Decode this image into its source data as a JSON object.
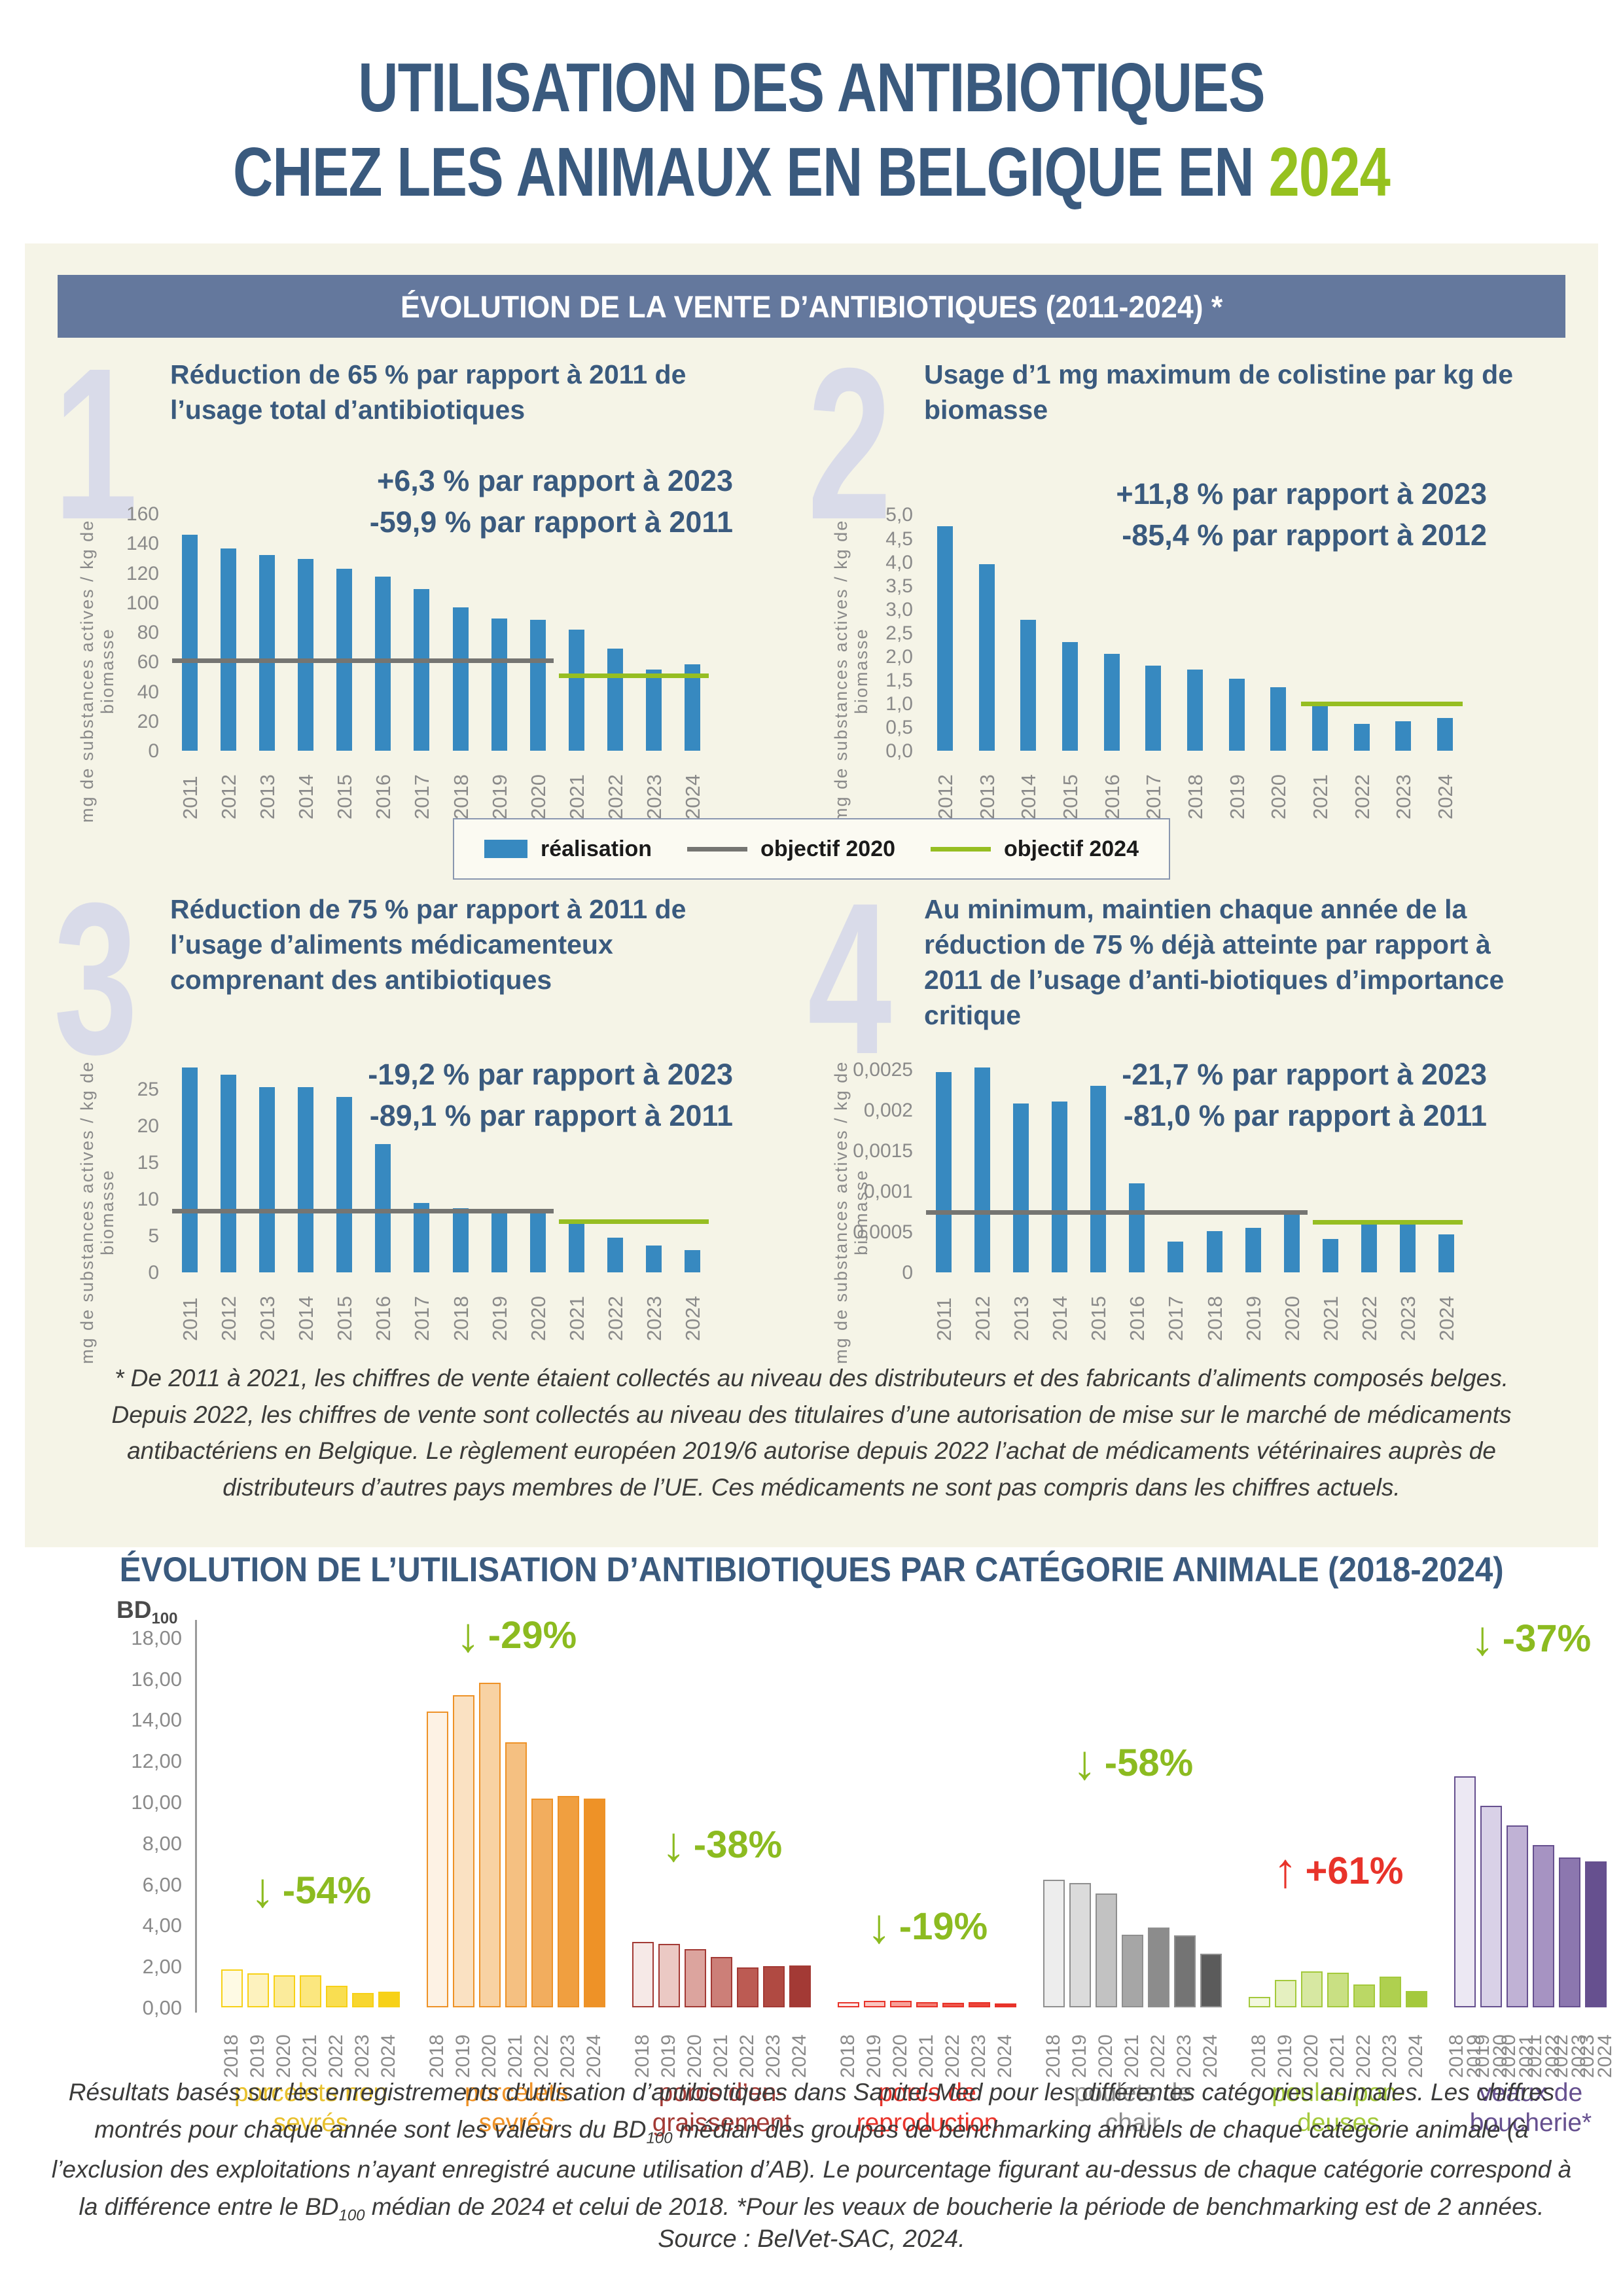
{
  "page_title": {
    "line1": "UTILISATION DES ANTIBIOTIQUES",
    "line2_prefix": "CHEZ LES ANIMAUX EN BELGIQUE EN ",
    "line2_year": "2024"
  },
  "colors": {
    "navy": "#3A5A7E",
    "lime": "#96C11F",
    "bar_blue": "#3789C0",
    "objective_grey": "#757572",
    "objective_green": "#96BE22",
    "header_band": "#64789D",
    "panel_cream": "#F5F4E7"
  },
  "section_sales": {
    "header": "ÉVOLUTION DE LA VENTE D’ANTIBIOTIQUES (2011-2024) *",
    "legend": [
      {
        "name": "réalisation"
      },
      {
        "name": "objectif 2020"
      },
      {
        "name": "objectif 2024"
      }
    ],
    "footnote": "* De 2011 à 2021, les chiffres de vente étaient collectés au niveau des distributeurs et des fabricants d’aliments composés belges. Depuis 2022, les chiffres de vente sont collectés au niveau des titulaires d’une autorisation de mise sur le marché de médicaments antibactériens en Belgique. Le règlement européen 2019/6 autorise depuis 2022 l’achat de médicaments vétérinaires auprès de distributeurs d’autres pays membres de l’UE. Ces médicaments ne sont pas compris dans les chiffres actuels."
  },
  "section_categories": {
    "heading": "ÉVOLUTION DE L’UTILISATION D’ANTIBIOTIQUES PAR CATÉGORIE ANIMALE (2018-2024)",
    "footer_note_html": "Résultats basés sur les enregistrements d’utilisation d’antibiotiques dans Sanitel-Med pour les différentes catégories animales. Les chiffres montrés pour chaque année sont les valeurs du BD<sub>100</sub> médian des groupes de benchmarking annuels de chaque catégorie animale (à l’exclusion des exploitations n’ayant enregistré aucune utilisation d’AB). Le pourcentage figurant au-dessus de chaque catégorie correspond à la différence entre le BD<sub>100</sub> médian de 2024 et celui de 2018. *Pour les veaux de boucherie la période de benchmarking est de 2 années.",
    "source": "Source : BelVet-SAC, 2024."
  },
  "chart_data": [
    {
      "id": "usage-total-antibiotiques",
      "type": "bar",
      "number": "1",
      "title": "Réduction de 65 % par rapport à 2011 de l’usage total d’antibiotiques",
      "annotation_lines": [
        "+6,3 % par rapport à 2023",
        "-59,9 % par rapport à 2011"
      ],
      "ylabel": "mg de substances actives / kg de biomasse",
      "categories": [
        "2011",
        "2012",
        "2013",
        "2014",
        "2015",
        "2016",
        "2017",
        "2018",
        "2019",
        "2020",
        "2021",
        "2022",
        "2023",
        "2024"
      ],
      "values": [
        146,
        136.5,
        132,
        129.5,
        123,
        117.5,
        109,
        97,
        89.5,
        88.5,
        82,
        69,
        55,
        58.5
      ],
      "ylim": [
        0,
        168
      ],
      "yticks": [
        {
          "v": 0,
          "label": "0"
        },
        {
          "v": 20,
          "label": "20"
        },
        {
          "v": 40,
          "label": "40"
        },
        {
          "v": 60,
          "label": "60"
        },
        {
          "v": 80,
          "label": "80"
        },
        {
          "v": 100,
          "label": "100"
        },
        {
          "v": 120,
          "label": "120"
        },
        {
          "v": 140,
          "label": "140"
        },
        {
          "v": 160,
          "label": "160"
        }
      ],
      "bar_color": "#3789C0",
      "target_lines": [
        {
          "name": "objectif 2020",
          "value": 61,
          "start": "2011",
          "end": "2020",
          "color": "#757572"
        },
        {
          "name": "objectif 2024",
          "value": 51,
          "start": "2021",
          "end": "2024",
          "color": "#96BE22"
        }
      ]
    },
    {
      "id": "usage-colistine",
      "type": "bar",
      "number": "2",
      "title": "Usage d’1 mg maximum de colistine par kg de biomasse",
      "annotation_lines": [
        "+11,8 % par rapport à 2023",
        "-85,4 % par rapport à 2012"
      ],
      "ylabel": "mg de substances actives / kg de biomasse",
      "categories": [
        "2012",
        "2013",
        "2014",
        "2015",
        "2016",
        "2017",
        "2018",
        "2019",
        "2020",
        "2021",
        "2022",
        "2023",
        "2024"
      ],
      "values": [
        4.75,
        3.95,
        2.78,
        2.3,
        2.05,
        1.8,
        1.72,
        1.52,
        1.35,
        1.0,
        0.57,
        0.62,
        0.69
      ],
      "ylim": [
        0,
        5.27
      ],
      "yticks": [
        {
          "v": 0,
          "label": "0,0"
        },
        {
          "v": 0.5,
          "label": "0,5"
        },
        {
          "v": 1,
          "label": "1,0"
        },
        {
          "v": 1.5,
          "label": "1,5"
        },
        {
          "v": 2,
          "label": "2,0"
        },
        {
          "v": 2.5,
          "label": "2,5"
        },
        {
          "v": 3,
          "label": "3,0"
        },
        {
          "v": 3.5,
          "label": "3,5"
        },
        {
          "v": 4,
          "label": "4,0"
        },
        {
          "v": 4.5,
          "label": "4,5"
        },
        {
          "v": 5,
          "label": "5,0"
        }
      ],
      "bar_color": "#3789C0",
      "target_lines": [
        {
          "name": "objectif 2024",
          "value": 1.0,
          "start": "2021",
          "end": "2024",
          "color": "#96BE22"
        }
      ]
    },
    {
      "id": "aliments-medicamenteux",
      "type": "bar",
      "number": "3",
      "title": "Réduction de 75 % par rapport à 2011 de l’usage d’aliments médicamenteux comprenant des antibiotiques",
      "annotation_lines": [
        "-19,2 % par rapport à 2023",
        "-89,1 % par rapport à 2011"
      ],
      "ylabel": "mg de substances actives / kg de biomasse",
      "categories": [
        "2011",
        "2012",
        "2013",
        "2014",
        "2015",
        "2016",
        "2017",
        "2018",
        "2019",
        "2020",
        "2021",
        "2022",
        "2023",
        "2024"
      ],
      "values": [
        28,
        27,
        25.3,
        25.3,
        24,
        17.5,
        9.5,
        8.8,
        8.45,
        8.3,
        7.0,
        4.7,
        3.7,
        3.0
      ],
      "ylim": [
        0,
        29.5
      ],
      "yticks": [
        {
          "v": 0,
          "label": "0"
        },
        {
          "v": 5,
          "label": "5"
        },
        {
          "v": 10,
          "label": "10"
        },
        {
          "v": 15,
          "label": "15"
        },
        {
          "v": 20,
          "label": "20"
        },
        {
          "v": 25,
          "label": "25"
        }
      ],
      "bar_color": "#3789C0",
      "target_lines": [
        {
          "name": "objectif 2020",
          "value": 8.4,
          "start": "2011",
          "end": "2020",
          "color": "#757572"
        },
        {
          "name": "objectif 2024",
          "value": 7.0,
          "start": "2021",
          "end": "2024",
          "color": "#96BE22"
        }
      ]
    },
    {
      "id": "antibiotiques-importance-critique",
      "type": "bar",
      "number": "4",
      "title": "Au minimum, maintien chaque année de la réduction de 75 % déjà atteinte par rapport à 2011 de l’usage d’anti-biotiques d’importance critique",
      "annotation_lines": [
        "-21,7 % par rapport à 2023",
        "-81,0 % par rapport à 2011"
      ],
      "ylabel": "mg de substances actives / kg de biomasse",
      "categories": [
        "2011",
        "2012",
        "2013",
        "2014",
        "2015",
        "2016",
        "2017",
        "2018",
        "2019",
        "2020",
        "2021",
        "2022",
        "2023",
        "2024"
      ],
      "values": [
        0.00247,
        0.00252,
        0.00208,
        0.0021,
        0.0023,
        0.0011,
        0.00038,
        0.00051,
        0.00055,
        0.00073,
        0.00041,
        0.00062,
        0.0006,
        0.00047
      ],
      "ylim": [
        0,
        0.00266
      ],
      "yticks": [
        {
          "v": 0,
          "label": "0"
        },
        {
          "v": 0.0005,
          "label": "0,0005"
        },
        {
          "v": 0.001,
          "label": "0,001"
        },
        {
          "v": 0.0015,
          "label": "0,0015"
        },
        {
          "v": 0.002,
          "label": "0,002"
        },
        {
          "v": 0.0025,
          "label": "0,0025"
        }
      ],
      "bar_color": "#3789C0",
      "target_lines": [
        {
          "name": "objectif 2020",
          "value": 0.00074,
          "start": "2011",
          "end": "2020",
          "color": "#757572"
        },
        {
          "name": "objectif 2024",
          "value": 0.00062,
          "start": "2021",
          "end": "2024",
          "color": "#96BE22"
        }
      ]
    },
    {
      "id": "bd100-par-categorie",
      "type": "grouped-bar",
      "y_axis_title_html": "BD<sub>100</sub>",
      "ylim": [
        0,
        19
      ],
      "yticks": [
        {
          "v": 0,
          "label": "0,00"
        },
        {
          "v": 2,
          "label": "2,00"
        },
        {
          "v": 4,
          "label": "4,00"
        },
        {
          "v": 6,
          "label": "6,00"
        },
        {
          "v": 8,
          "label": "8,00"
        },
        {
          "v": 10,
          "label": "10,00"
        },
        {
          "v": 12,
          "label": "12,00"
        },
        {
          "v": 14,
          "label": "14,00"
        },
        {
          "v": 16,
          "label": "16,00"
        },
        {
          "v": 18,
          "label": "18,00"
        }
      ],
      "groups": [
        {
          "label_lines": [
            "porcelets non",
            "sevrés"
          ],
          "label_color": "#E8C12E",
          "border_color": "#F7D117",
          "fills": [
            "#FEFAE4",
            "#FDF2BE",
            "#FBEB9B",
            "#FBE77F",
            "#F9DE51",
            "#F8D62F",
            "#F7D117"
          ],
          "years": [
            "2018",
            "2019",
            "2020",
            "2021",
            "2022",
            "2023",
            "2024"
          ],
          "values": [
            1.85,
            1.65,
            1.55,
            1.55,
            1.05,
            0.7,
            0.75
          ],
          "annotation": {
            "text": "-54%",
            "direction": "down",
            "color": "#8CBB20"
          }
        },
        {
          "label_lines": [
            "porcelets",
            "sevrés"
          ],
          "label_color": "#EE9227",
          "border_color": "#EE9227",
          "fills": [
            "#FDF2E4",
            "#FAE1C2",
            "#F8D2A3",
            "#F5C081",
            "#F2AD5E",
            "#F09F40",
            "#EE9227"
          ],
          "years": [
            "2018",
            "2019",
            "2020",
            "2021",
            "2022",
            "2023",
            "2024"
          ],
          "values": [
            14.4,
            15.2,
            15.8,
            12.9,
            10.15,
            10.3,
            10.15
          ],
          "annotation": {
            "text": "-29%",
            "direction": "down",
            "color": "#8CBB20"
          }
        },
        {
          "label_lines": [
            "porcs d’en-",
            "graissement"
          ],
          "label_color": "#A33A35",
          "border_color": "#A33A35",
          "fills": [
            "#F6E9E7",
            "#EBC9C4",
            "#DCA49E",
            "#CC7F78",
            "#BC5B53",
            "#B04A42",
            "#A33A35"
          ],
          "years": [
            "2018",
            "2019",
            "2020",
            "2021",
            "2022",
            "2023",
            "2024"
          ],
          "values": [
            3.2,
            3.1,
            2.85,
            2.45,
            1.95,
            2.0,
            2.05
          ],
          "annotation": {
            "text": "-38%",
            "direction": "down",
            "color": "#8CBB20"
          }
        },
        {
          "label_lines": [
            "porcs de",
            "reproduction"
          ],
          "label_color": "#E8332A",
          "border_color": "#E8332A",
          "fills": [
            "#FDEBE9",
            "#FAC5C0",
            "#F7A19A",
            "#F37D73",
            "#EF594D",
            "#EC463B",
            "#E8332A"
          ],
          "years": [
            "2018",
            "2019",
            "2020",
            "2021",
            "2022",
            "2023",
            "2024"
          ],
          "values": [
            0.26,
            0.33,
            0.33,
            0.27,
            0.22,
            0.26,
            0.2
          ],
          "annotation": {
            "text": "-19%",
            "direction": "down",
            "color": "#8CBB20"
          }
        },
        {
          "label_lines": [
            "poulets de",
            "chair"
          ],
          "label_color": "#8C8C8C",
          "border_color": "#8F8F8F",
          "fills": [
            "#EDEDED",
            "#DBDBDB",
            "#C2C2C2",
            "#A6A6A6",
            "#8C8C8C",
            "#747474",
            "#5B5B5B"
          ],
          "years": [
            "2018",
            "2019",
            "2020",
            "2021",
            "2022",
            "2023",
            "2024"
          ],
          "values": [
            6.2,
            6.05,
            5.55,
            3.55,
            3.9,
            3.5,
            2.6
          ],
          "annotation": {
            "text": "-58%",
            "direction": "down",
            "color": "#8CBB20"
          }
        },
        {
          "label_lines": [
            "poules pon-",
            "deuses"
          ],
          "label_color": "#A4C93C",
          "border_color": "#A4C93C",
          "fills": [
            "#F3F8DF",
            "#E5F0C0",
            "#D7E8A2",
            "#C9E083",
            "#BBD865",
            "#AFD04F",
            "#A4C93C"
          ],
          "years": [
            "2018",
            "2019",
            "2020",
            "2021",
            "2022",
            "2023",
            "2024"
          ],
          "values": [
            0.5,
            1.35,
            1.75,
            1.7,
            1.1,
            1.5,
            0.8
          ],
          "annotation": {
            "text": "+61%",
            "direction": "up",
            "color": "#E8332A"
          }
        },
        {
          "label_lines": [
            "veaux de",
            "boucherie*"
          ],
          "label_color": "#66508F",
          "border_color": "#66508F",
          "fills": [
            "#ECE8F3",
            "#D9D1E7",
            "#C0B2D5",
            "#A693C2",
            "#8C77AF",
            "#66508F"
          ],
          "years": [
            "2018\n2019",
            "2019\n2020",
            "2020\n2021",
            "2021\n2022",
            "2022\n2023",
            "2023\n2024"
          ],
          "values": [
            11.25,
            9.8,
            8.85,
            7.9,
            7.3,
            7.1
          ],
          "annotation": {
            "text": "-37%",
            "direction": "down",
            "color": "#8CBB20"
          }
        }
      ]
    }
  ]
}
